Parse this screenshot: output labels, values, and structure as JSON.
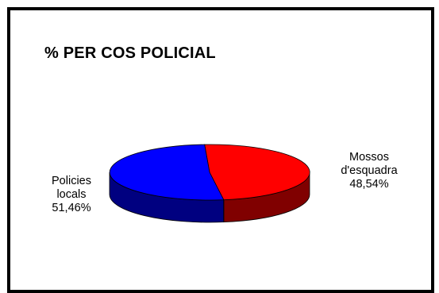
{
  "chart_data": {
    "type": "pie",
    "title": "% PER COS POLICIAL",
    "slices": [
      {
        "name": "Mossos d'esquadra",
        "label_lines": [
          "Mossos",
          "d'esquadra"
        ],
        "value": 48.54,
        "value_label": "48,54%",
        "color": "#ff0000",
        "side_color": "#800000"
      },
      {
        "name": "Policies locals",
        "label_lines": [
          "Policies",
          "locals"
        ],
        "value": 51.46,
        "value_label": "51,46%",
        "color": "#0000ff",
        "side_color": "#000080"
      }
    ],
    "style": "3d-pie",
    "legend": "none"
  }
}
